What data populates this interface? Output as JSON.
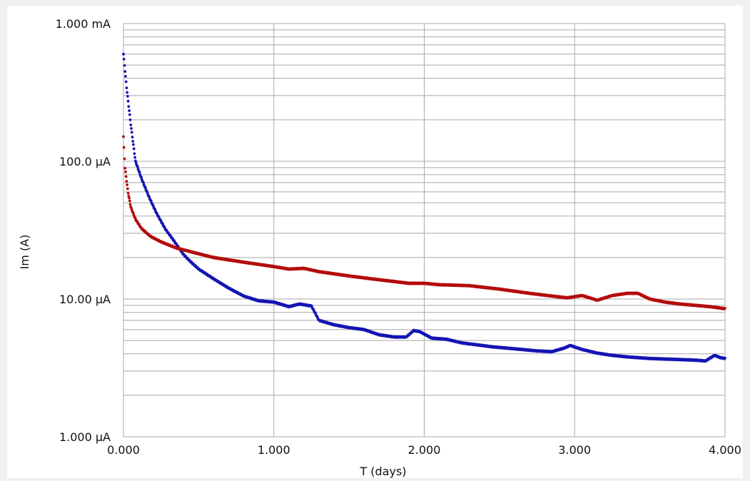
{
  "chart_data": {
    "type": "scatter",
    "xlabel": "T (days)",
    "ylabel": "Im (A)",
    "xlim": [
      0,
      4
    ],
    "ylim": [
      1e-06,
      0.001
    ],
    "yscale": "log",
    "grid": true,
    "x_ticks": [
      {
        "value": 0,
        "label": "0.000"
      },
      {
        "value": 1,
        "label": "1.000"
      },
      {
        "value": 2,
        "label": "2.000"
      },
      {
        "value": 3,
        "label": "3.000"
      },
      {
        "value": 4,
        "label": "4.000"
      }
    ],
    "y_ticks": [
      {
        "value": 0.001,
        "label": "1.000 mA"
      },
      {
        "value": 0.0001,
        "label": "100.0 µA"
      },
      {
        "value": 1e-05,
        "label": "10.00 µA"
      },
      {
        "value": 1e-06,
        "label": "1.000 µA"
      }
    ],
    "series": [
      {
        "color": "#1414b4",
        "points": [
          [
            0.0,
            0.0006
          ],
          [
            0.02,
            0.00035
          ],
          [
            0.05,
            0.00018
          ],
          [
            0.08,
            0.0001
          ],
          [
            0.12,
            7.5e-05
          ],
          [
            0.17,
            5.5e-05
          ],
          [
            0.22,
            4.2e-05
          ],
          [
            0.28,
            3.2e-05
          ],
          [
            0.33,
            2.7e-05
          ],
          [
            0.4,
            2.1e-05
          ],
          [
            0.45,
            1.85e-05
          ],
          [
            0.5,
            1.65e-05
          ],
          [
            0.6,
            1.4e-05
          ],
          [
            0.7,
            1.2e-05
          ],
          [
            0.8,
            1.05e-05
          ],
          [
            0.9,
            9.7e-06
          ],
          [
            1.0,
            9.5e-06
          ],
          [
            1.1,
            8.8e-06
          ],
          [
            1.17,
            9.2e-06
          ],
          [
            1.25,
            8.9e-06
          ],
          [
            1.3,
            7e-06
          ],
          [
            1.4,
            6.5e-06
          ],
          [
            1.5,
            6.2e-06
          ],
          [
            1.6,
            6e-06
          ],
          [
            1.7,
            5.5e-06
          ],
          [
            1.8,
            5.3e-06
          ],
          [
            1.88,
            5.3e-06
          ],
          [
            1.93,
            5.9e-06
          ],
          [
            1.97,
            5.8e-06
          ],
          [
            2.05,
            5.2e-06
          ],
          [
            2.15,
            5.1e-06
          ],
          [
            2.25,
            4.8e-06
          ],
          [
            2.35,
            4.65e-06
          ],
          [
            2.45,
            4.5e-06
          ],
          [
            2.6,
            4.35e-06
          ],
          [
            2.75,
            4.2e-06
          ],
          [
            2.85,
            4.15e-06
          ],
          [
            2.93,
            4.4e-06
          ],
          [
            2.97,
            4.6e-06
          ],
          [
            3.05,
            4.3e-06
          ],
          [
            3.15,
            4.05e-06
          ],
          [
            3.25,
            3.9e-06
          ],
          [
            3.35,
            3.8e-06
          ],
          [
            3.5,
            3.7e-06
          ],
          [
            3.65,
            3.65e-06
          ],
          [
            3.8,
            3.6e-06
          ],
          [
            3.87,
            3.55e-06
          ],
          [
            3.93,
            3.9e-06
          ],
          [
            3.97,
            3.75e-06
          ],
          [
            4.0,
            3.7e-06
          ]
        ]
      },
      {
        "color": "#b40c0c",
        "points": [
          [
            0.0,
            0.00015
          ],
          [
            0.01,
            9e-05
          ],
          [
            0.03,
            6e-05
          ],
          [
            0.05,
            4.6e-05
          ],
          [
            0.08,
            3.8e-05
          ],
          [
            0.12,
            3.25e-05
          ],
          [
            0.18,
            2.85e-05
          ],
          [
            0.25,
            2.6e-05
          ],
          [
            0.35,
            2.35e-05
          ],
          [
            0.45,
            2.2e-05
          ],
          [
            0.6,
            2e-05
          ],
          [
            0.8,
            1.85e-05
          ],
          [
            1.0,
            1.72e-05
          ],
          [
            1.1,
            1.65e-05
          ],
          [
            1.2,
            1.67e-05
          ],
          [
            1.3,
            1.58e-05
          ],
          [
            1.5,
            1.47e-05
          ],
          [
            1.7,
            1.38e-05
          ],
          [
            1.9,
            1.3e-05
          ],
          [
            2.0,
            1.3e-05
          ],
          [
            2.1,
            1.27e-05
          ],
          [
            2.3,
            1.25e-05
          ],
          [
            2.5,
            1.18e-05
          ],
          [
            2.7,
            1.1e-05
          ],
          [
            2.85,
            1.05e-05
          ],
          [
            2.95,
            1.02e-05
          ],
          [
            3.05,
            1.06e-05
          ],
          [
            3.1,
            1.02e-05
          ],
          [
            3.15,
            9.8e-06
          ],
          [
            3.25,
            1.06e-05
          ],
          [
            3.35,
            1.1e-05
          ],
          [
            3.42,
            1.1e-05
          ],
          [
            3.5,
            1e-05
          ],
          [
            3.6,
            9.5e-06
          ],
          [
            3.7,
            9.2e-06
          ],
          [
            3.8,
            9e-06
          ],
          [
            3.9,
            8.8e-06
          ],
          [
            4.0,
            8.5e-06
          ]
        ]
      }
    ]
  }
}
